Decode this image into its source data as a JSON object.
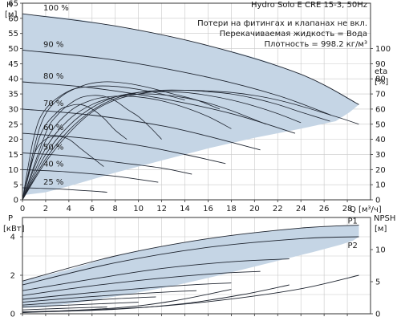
{
  "header": {
    "title": "Hydro Solo E CRE 15-3, 50Hz",
    "notes": [
      "Потери на фитингах и клапанах не вкл.",
      "Перекачиваемая жидкость = Вода",
      "Плотность = 998.2 кг/м³"
    ]
  },
  "colors": {
    "envelope_fill": "#c5d5e5",
    "curve": "#1f2530",
    "grid": "#c8c8c8",
    "axis": "#333333",
    "text": "#1a1a1a"
  },
  "chart_data": [
    {
      "id": "head",
      "type": "line",
      "ylabel": "H",
      "yunit": "[м]",
      "y2label": "eta",
      "y2unit": "[%]",
      "xlabel": "Q [м³/ч]",
      "xlim": [
        0,
        30
      ],
      "ylim": [
        0,
        65
      ],
      "y2lim": [
        0,
        130
      ],
      "x_ticks": [
        0,
        2,
        4,
        6,
        8,
        10,
        12,
        14,
        16,
        18,
        20,
        22,
        24,
        26,
        28
      ],
      "y_ticks": [
        0,
        5,
        10,
        15,
        20,
        25,
        30,
        35,
        40,
        45,
        50,
        55,
        60,
        65
      ],
      "y2_ticks": [
        0,
        10,
        20,
        30,
        40,
        50,
        60,
        70,
        80,
        90,
        100
      ],
      "grid": true,
      "envelope": {
        "upper": [
          [
            0,
            61.5
          ],
          [
            4,
            60
          ],
          [
            8,
            57.5
          ],
          [
            12,
            54.5
          ],
          [
            16,
            51
          ],
          [
            20,
            47
          ],
          [
            24,
            41.5
          ],
          [
            27,
            36
          ],
          [
            29,
            31.5
          ]
        ],
        "lower": [
          [
            29,
            31.5
          ],
          [
            28.2,
            29
          ],
          [
            27,
            26
          ],
          [
            24,
            23.5
          ],
          [
            20,
            20.5
          ],
          [
            16,
            17
          ],
          [
            12,
            13
          ],
          [
            8,
            9
          ],
          [
            4,
            4.5
          ],
          [
            2,
            2.5
          ],
          [
            0,
            1.5
          ]
        ]
      },
      "speed_curves": [
        {
          "label": "100 %",
          "points": [
            [
              0,
              61.5
            ],
            [
              8,
              57.5
            ],
            [
              16,
              51
            ],
            [
              24,
              41.5
            ],
            [
              29,
              31.5
            ]
          ]
        },
        {
          "label": "90 %",
          "points": [
            [
              0,
              49.5
            ],
            [
              8,
              46.2
            ],
            [
              16,
              40.5
            ],
            [
              22,
              34.5
            ],
            [
              26.6,
              28
            ]
          ]
        },
        {
          "label": "80 %",
          "points": [
            [
              0,
              39
            ],
            [
              6,
              37
            ],
            [
              12,
              33.5
            ],
            [
              18,
              28.5
            ],
            [
              23.5,
              22
            ]
          ]
        },
        {
          "label": "70 %",
          "points": [
            [
              0,
              30
            ],
            [
              6,
              28
            ],
            [
              12,
              24.5
            ],
            [
              16,
              21
            ],
            [
              20.5,
              16.5
            ]
          ]
        },
        {
          "label": "60 %",
          "points": [
            [
              0,
              22
            ],
            [
              5,
              20.5
            ],
            [
              10,
              18
            ],
            [
              14,
              15
            ],
            [
              17.5,
              12
            ]
          ]
        },
        {
          "label": "50 %",
          "points": [
            [
              0,
              15.5
            ],
            [
              4,
              14.5
            ],
            [
              8,
              12.5
            ],
            [
              12,
              10.5
            ],
            [
              14.6,
              8.5
            ]
          ]
        },
        {
          "label": "40 %",
          "points": [
            [
              0,
              10
            ],
            [
              4,
              9.2
            ],
            [
              8,
              7.8
            ],
            [
              11.7,
              5.8
            ]
          ]
        },
        {
          "label": "25 %",
          "points": [
            [
              0,
              4
            ],
            [
              3,
              3.6
            ],
            [
              6,
              2.9
            ],
            [
              7.3,
              2.5
            ]
          ]
        }
      ],
      "efficiency_curves": [
        {
          "points": [
            [
              0,
              0
            ],
            [
              2,
              25
            ],
            [
              4,
              44
            ],
            [
              6,
              58
            ],
            [
              8,
              66
            ],
            [
              10,
              70
            ],
            [
              12,
              72
            ],
            [
              14,
              72.5
            ],
            [
              16,
              72
            ],
            [
              18,
              71
            ],
            [
              20,
              69
            ],
            [
              22,
              66
            ],
            [
              24,
              62
            ],
            [
              27,
              55
            ],
            [
              29,
              50
            ]
          ]
        },
        {
          "points": [
            [
              0,
              0
            ],
            [
              2,
              27
            ],
            [
              4,
              46
            ],
            [
              6,
              59
            ],
            [
              8,
              67
            ],
            [
              10,
              71
            ],
            [
              12,
              72.5
            ],
            [
              14,
              72.5
            ],
            [
              16,
              71.5
            ],
            [
              18,
              70
            ],
            [
              20,
              67
            ],
            [
              22,
              63
            ],
            [
              24,
              58
            ],
            [
              26.5,
              52
            ]
          ]
        },
        {
          "points": [
            [
              0,
              0
            ],
            [
              2,
              30
            ],
            [
              4,
              49
            ],
            [
              6,
              61
            ],
            [
              8,
              68
            ],
            [
              10,
              71
            ],
            [
              12,
              71.5
            ],
            [
              14,
              71
            ],
            [
              16,
              69
            ],
            [
              18,
              66
            ],
            [
              20,
              62
            ],
            [
              22,
              57
            ],
            [
              24,
              51
            ]
          ]
        },
        {
          "points": [
            [
              0,
              0
            ],
            [
              2,
              34
            ],
            [
              4,
              53
            ],
            [
              6,
              63
            ],
            [
              8,
              68
            ],
            [
              10,
              70
            ],
            [
              12,
              69.5
            ],
            [
              14,
              67.5
            ],
            [
              16,
              64
            ],
            [
              18,
              59
            ],
            [
              20,
              53
            ],
            [
              21,
              50
            ]
          ]
        },
        {
          "points": [
            [
              0,
              0
            ],
            [
              2,
              39
            ],
            [
              4,
              58
            ],
            [
              6,
              66
            ],
            [
              8,
              68.5
            ],
            [
              10,
              68
            ],
            [
              12,
              65.5
            ],
            [
              14,
              61
            ],
            [
              16,
              55
            ],
            [
              18,
              47
            ]
          ]
        },
        {
          "points": [
            [
              0,
              0
            ],
            [
              2,
              44
            ],
            [
              3,
              56
            ],
            [
              4,
              63
            ],
            [
              5,
              67.5
            ],
            [
              6,
              69
            ],
            [
              7,
              68.5
            ],
            [
              8,
              65.5
            ],
            [
              9,
              60
            ],
            [
              10,
              55
            ],
            [
              11,
              48
            ],
            [
              12,
              40
            ]
          ]
        },
        {
          "points": [
            [
              0,
              0
            ],
            [
              1.5,
              42
            ],
            [
              3,
              58
            ],
            [
              4,
              62
            ],
            [
              5,
              63
            ],
            [
              6,
              60
            ],
            [
              7,
              54
            ],
            [
              8,
              46
            ],
            [
              9,
              40
            ]
          ]
        },
        {
          "points": [
            [
              0,
              0
            ],
            [
              1,
              30
            ],
            [
              2,
              40
            ],
            [
              3,
              42
            ],
            [
              4,
              40
            ],
            [
              5,
              34
            ],
            [
              6,
              28
            ],
            [
              7,
              22
            ]
          ]
        },
        {
          "points": [
            [
              0,
              0
            ],
            [
              1,
              42
            ],
            [
              2,
              60
            ],
            [
              4,
              72
            ],
            [
              6,
              75
            ],
            [
              8,
              75
            ],
            [
              10,
              73
            ],
            [
              12,
              70
            ],
            [
              14,
              66
            ]
          ]
        },
        {
          "points": [
            [
              0,
              0
            ],
            [
              1.5,
              48
            ],
            [
              3,
              66
            ],
            [
              5,
              75
            ],
            [
              7,
              78
            ],
            [
              9,
              77
            ],
            [
              11,
              74
            ],
            [
              13,
              70
            ],
            [
              15,
              66
            ],
            [
              17,
              60
            ]
          ]
        }
      ]
    },
    {
      "id": "power",
      "type": "line",
      "ylabel": "P",
      "yunit": "[кВт]",
      "y2label": "NPSH",
      "y2unit": "[м]",
      "xlim": [
        0,
        30
      ],
      "ylim": [
        0,
        5
      ],
      "y2lim": [
        0,
        15
      ],
      "y_ticks": [
        0,
        2,
        4
      ],
      "y2_ticks": [
        0,
        5,
        10
      ],
      "grid": true,
      "series_labels": [
        "P1",
        "P2"
      ],
      "envelope": {
        "upper": [
          [
            0,
            1.7
          ],
          [
            4,
            2.3
          ],
          [
            8,
            3.0
          ],
          [
            12,
            3.5
          ],
          [
            16,
            3.9
          ],
          [
            20,
            4.2
          ],
          [
            24,
            4.45
          ],
          [
            28,
            4.6
          ],
          [
            29,
            4.6
          ]
        ],
        "lower": [
          [
            29,
            4.0
          ],
          [
            28.5,
            3.8
          ],
          [
            27.5,
            3.6
          ],
          [
            25,
            3.2
          ],
          [
            21,
            2.6
          ],
          [
            17,
            2.0
          ],
          [
            13,
            1.45
          ],
          [
            9,
            1.0
          ],
          [
            5,
            0.6
          ],
          [
            2,
            0.35
          ],
          [
            0,
            0.3
          ]
        ]
      },
      "curves": [
        {
          "name": "P1",
          "points": [
            [
              0,
              1.7
            ],
            [
              8,
              3.0
            ],
            [
              16,
              3.9
            ],
            [
              24,
              4.45
            ],
            [
              29,
              4.6
            ]
          ]
        },
        {
          "name": "P2",
          "points": [
            [
              0,
              1.5
            ],
            [
              8,
              2.65
            ],
            [
              16,
              3.45
            ],
            [
              24,
              3.9
            ],
            [
              29,
              4.0
            ]
          ]
        },
        {
          "points": [
            [
              0,
              1.2
            ],
            [
              6,
              1.8
            ],
            [
              12,
              2.35
            ],
            [
              18,
              2.7
            ],
            [
              23,
              2.85
            ]
          ]
        },
        {
          "points": [
            [
              0,
              0.95
            ],
            [
              6,
              1.45
            ],
            [
              12,
              1.85
            ],
            [
              17,
              2.1
            ],
            [
              20.5,
              2.2
            ]
          ]
        },
        {
          "points": [
            [
              0,
              0.75
            ],
            [
              6,
              1.1
            ],
            [
              12,
              1.4
            ],
            [
              16,
              1.55
            ],
            [
              18,
              1.6
            ]
          ]
        },
        {
          "points": [
            [
              0,
              0.6
            ],
            [
              5,
              0.85
            ],
            [
              10,
              1.05
            ],
            [
              13,
              1.15
            ],
            [
              15,
              1.2
            ]
          ]
        },
        {
          "points": [
            [
              0,
              0.45
            ],
            [
              4,
              0.62
            ],
            [
              8,
              0.78
            ],
            [
              11.5,
              0.88
            ]
          ]
        },
        {
          "points": [
            [
              0,
              0.35
            ],
            [
              4,
              0.45
            ],
            [
              8,
              0.55
            ],
            [
              10,
              0.6
            ]
          ]
        },
        {
          "points": [
            [
              0,
              0.2
            ],
            [
              3,
              0.27
            ],
            [
              6,
              0.33
            ],
            [
              7.3,
              0.35
            ]
          ]
        }
      ],
      "npsh_curves": [
        {
          "points": [
            [
              0,
              0.3
            ],
            [
              6,
              0.6
            ],
            [
              12,
              1.2
            ],
            [
              18,
              2.3
            ],
            [
              24,
              3.9
            ],
            [
              29,
              6.0
            ]
          ]
        },
        {
          "points": [
            [
              0,
              0.2
            ],
            [
              8,
              0.7
            ],
            [
              14,
              1.6
            ],
            [
              19,
              3.0
            ],
            [
              23,
              4.5
            ]
          ]
        },
        {
          "points": [
            [
              0,
              0.2
            ],
            [
              8,
              0.9
            ],
            [
              13,
              2.0
            ],
            [
              18,
              3.8
            ]
          ]
        }
      ]
    }
  ]
}
